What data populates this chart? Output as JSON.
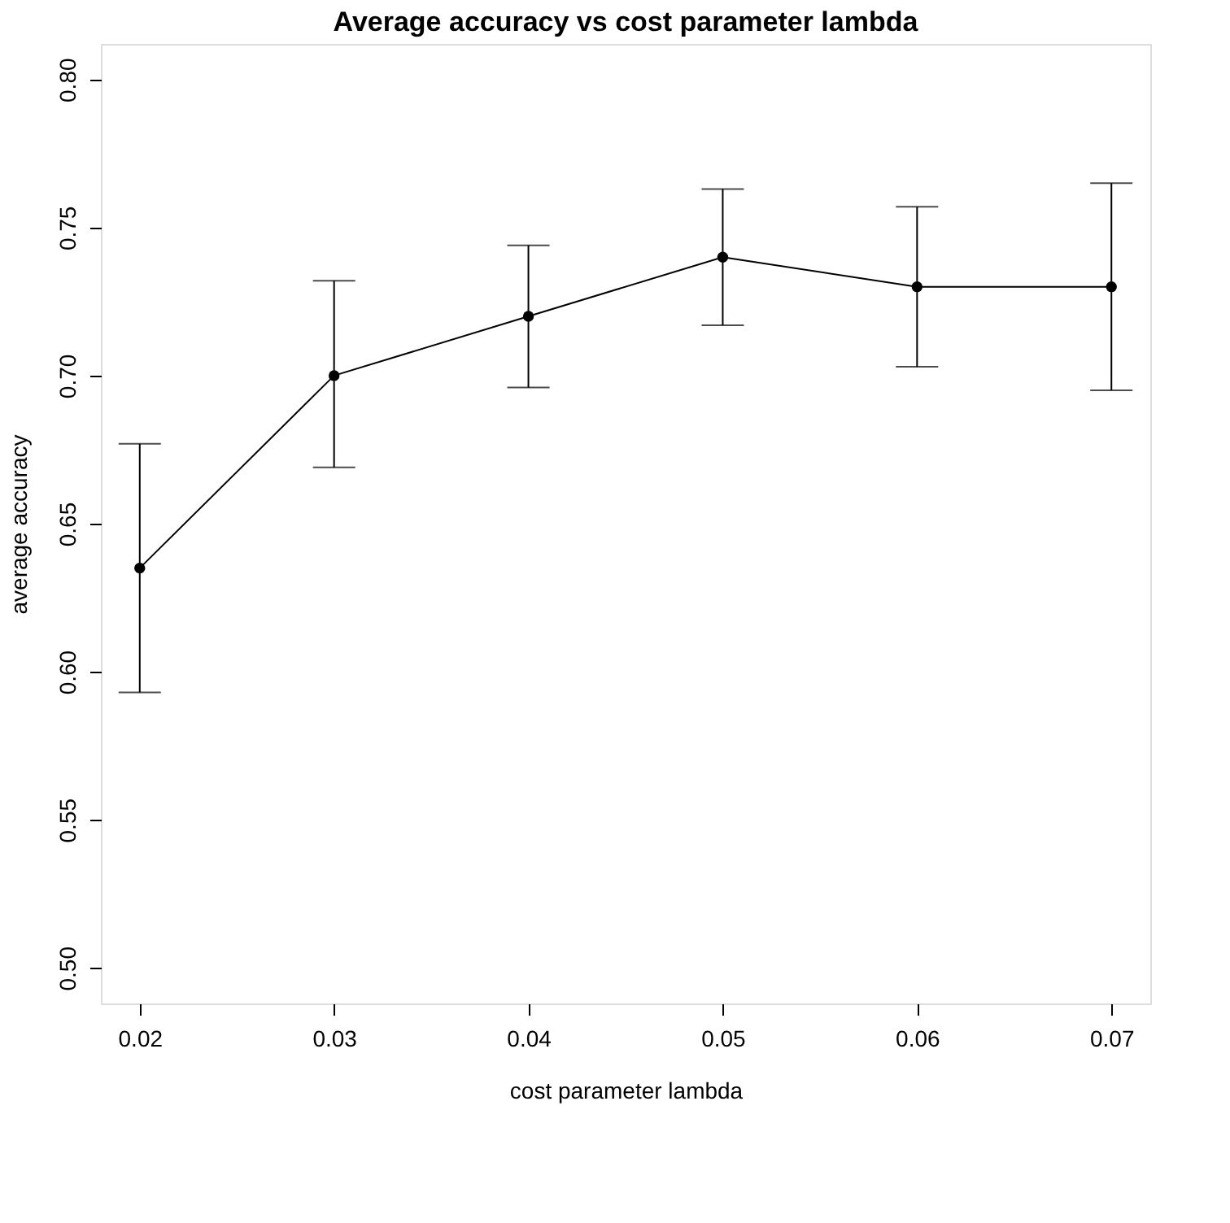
{
  "chart_data": {
    "type": "line",
    "title": "Average accuracy vs cost parameter lambda",
    "xlabel": "cost parameter lambda",
    "ylabel": "average accuracy",
    "x": [
      0.02,
      0.03,
      0.04,
      0.05,
      0.06,
      0.07
    ],
    "series": [
      {
        "color": "#000000",
        "values": [
          0.635,
          0.7,
          0.72,
          0.74,
          0.73,
          0.73
        ],
        "errors": [
          [
            0.593,
            0.677
          ],
          [
            0.669,
            0.732
          ],
          [
            0.696,
            0.744
          ],
          [
            0.717,
            0.763
          ],
          [
            0.703,
            0.757
          ],
          [
            0.695,
            0.765
          ]
        ]
      }
    ],
    "xlim": [
      0.018,
      0.072
    ],
    "xticks": [
      0.02,
      0.03,
      0.04,
      0.05,
      0.06,
      {
        "value": 0.07,
        "label": "0.07"
      }
    ],
    "ylim": [
      0.488,
      0.812
    ],
    "yticks": [
      {
        "value": 0.5,
        "label": "0.50"
      },
      {
        "value": 0.55,
        "label": "0.55"
      },
      {
        "value": 0.6,
        "label": "0.60"
      },
      {
        "value": 0.65,
        "label": "0.65"
      },
      {
        "value": 0.7,
        "label": "0.70"
      },
      {
        "value": 0.75,
        "label": "0.75"
      },
      {
        "value": 0.8,
        "label": "0.80"
      }
    ],
    "marker": "circle",
    "line_style": "solid",
    "grid": false
  }
}
